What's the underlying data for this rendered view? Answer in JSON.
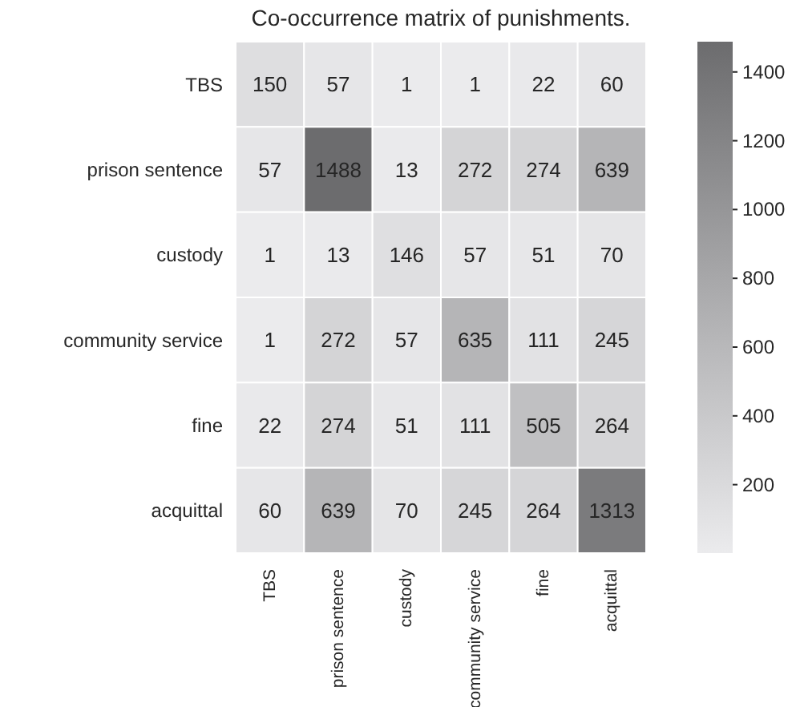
{
  "chart_data": {
    "type": "heatmap",
    "title": "Co-occurrence matrix of punishments.",
    "categories": [
      "TBS",
      "prison sentence",
      "custody",
      "community service",
      "fine",
      "acquittal"
    ],
    "y_categories": [
      "TBS",
      "prison sentence",
      "custody",
      "community service",
      "fine",
      "acquittal"
    ],
    "cells": [
      [
        150,
        57,
        1,
        1,
        22,
        60
      ],
      [
        57,
        1488,
        13,
        272,
        274,
        639
      ],
      [
        1,
        13,
        146,
        57,
        51,
        70
      ],
      [
        1,
        272,
        57,
        635,
        111,
        245
      ],
      [
        22,
        274,
        51,
        111,
        505,
        264
      ],
      [
        60,
        639,
        70,
        245,
        264,
        1313
      ]
    ],
    "clim": [
      1,
      1488
    ],
    "cticks": [
      200,
      400,
      600,
      800,
      1000,
      1200,
      1400
    ],
    "data_labels": true
  }
}
